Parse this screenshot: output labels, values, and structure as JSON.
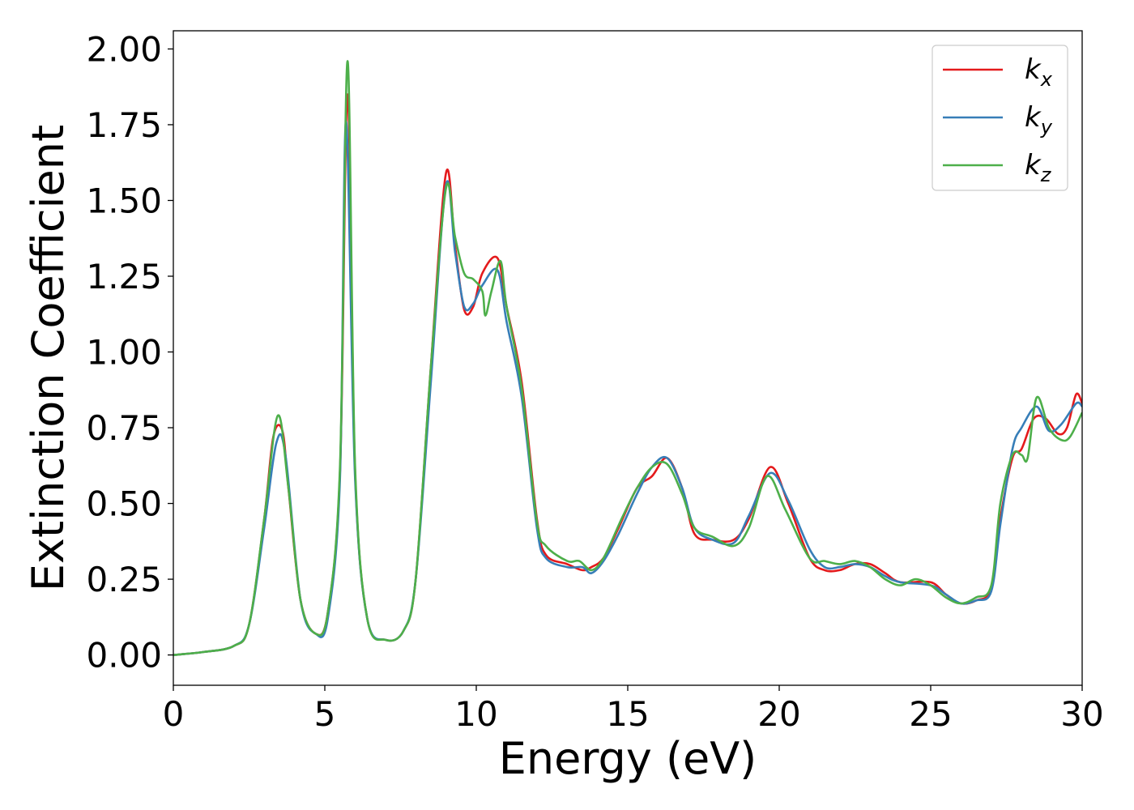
{
  "chart_data": {
    "type": "line",
    "title": "",
    "xlabel": "Energy (eV)",
    "ylabel": "Extinction Coefficient",
    "xlim": [
      0,
      30
    ],
    "ylim": [
      -0.1,
      2.06
    ],
    "xticks": [
      0,
      5,
      10,
      15,
      20,
      25,
      30
    ],
    "xtick_labels": [
      "0",
      "5",
      "10",
      "15",
      "20",
      "25",
      "30"
    ],
    "yticks": [
      0.0,
      0.25,
      0.5,
      0.75,
      1.0,
      1.25,
      1.5,
      1.75,
      2.0
    ],
    "ytick_labels": [
      "0.00",
      "0.25",
      "0.50",
      "0.75",
      "1.00",
      "1.25",
      "1.50",
      "1.75",
      "2.00"
    ],
    "grid": false,
    "legend_position": "top-right",
    "series": [
      {
        "name": "k",
        "sub": "x",
        "color": "#e41a1c",
        "x": [
          0,
          1,
          2,
          2.5,
          3,
          3.3,
          3.6,
          3.8,
          4.2,
          4.7,
          5.1,
          5.5,
          5.75,
          6.0,
          6.4,
          7.0,
          7.6,
          8.0,
          8.5,
          9.0,
          9.3,
          9.6,
          9.9,
          10.2,
          10.7,
          11.0,
          11.5,
          12.0,
          12.3,
          13.0,
          13.5,
          13.8,
          14.2,
          14.7,
          15.3,
          15.8,
          16.3,
          16.8,
          17.2,
          17.8,
          18.5,
          19.0,
          19.7,
          20.3,
          21.0,
          21.5,
          22.0,
          22.5,
          23.0,
          23.5,
          24.0,
          25.0,
          25.5,
          26.0,
          26.5,
          27.0,
          27.3,
          27.7,
          28.0,
          28.4,
          28.8,
          29.2,
          29.5,
          29.8,
          30.0
        ],
        "y": [
          0.0,
          0.01,
          0.03,
          0.1,
          0.45,
          0.72,
          0.74,
          0.55,
          0.18,
          0.07,
          0.14,
          0.6,
          1.85,
          0.6,
          0.12,
          0.05,
          0.08,
          0.25,
          0.95,
          1.59,
          1.35,
          1.14,
          1.15,
          1.26,
          1.31,
          1.15,
          0.9,
          0.45,
          0.33,
          0.3,
          0.28,
          0.29,
          0.32,
          0.42,
          0.55,
          0.59,
          0.65,
          0.55,
          0.4,
          0.38,
          0.38,
          0.45,
          0.62,
          0.5,
          0.32,
          0.28,
          0.28,
          0.3,
          0.3,
          0.27,
          0.24,
          0.24,
          0.2,
          0.17,
          0.18,
          0.22,
          0.45,
          0.65,
          0.68,
          0.78,
          0.78,
          0.73,
          0.75,
          0.86,
          0.83
        ]
      },
      {
        "name": "k",
        "sub": "y",
        "color": "#377eb8",
        "x": [
          0,
          1,
          2,
          2.5,
          3,
          3.4,
          3.7,
          4.2,
          4.7,
          5.1,
          5.5,
          5.7,
          6.0,
          6.4,
          7.0,
          7.6,
          8.0,
          8.5,
          9.0,
          9.3,
          9.6,
          9.9,
          10.2,
          10.7,
          11.0,
          11.5,
          12.0,
          12.3,
          13.0,
          13.5,
          13.8,
          14.2,
          14.7,
          15.3,
          15.8,
          16.3,
          16.8,
          17.2,
          17.8,
          18.5,
          19.0,
          19.7,
          20.3,
          21.0,
          21.5,
          22.0,
          22.5,
          23.0,
          23.5,
          24.0,
          25.0,
          25.5,
          26.0,
          26.5,
          27.0,
          27.3,
          27.7,
          28.0,
          28.5,
          28.9,
          29.3,
          29.8,
          30.0
        ],
        "y": [
          0.0,
          0.01,
          0.03,
          0.1,
          0.42,
          0.7,
          0.66,
          0.18,
          0.07,
          0.12,
          0.58,
          1.76,
          0.58,
          0.12,
          0.05,
          0.08,
          0.25,
          0.9,
          1.55,
          1.33,
          1.15,
          1.16,
          1.22,
          1.27,
          1.1,
          0.85,
          0.42,
          0.32,
          0.29,
          0.29,
          0.27,
          0.31,
          0.4,
          0.53,
          0.62,
          0.65,
          0.55,
          0.42,
          0.38,
          0.37,
          0.46,
          0.6,
          0.51,
          0.35,
          0.29,
          0.29,
          0.3,
          0.29,
          0.26,
          0.24,
          0.23,
          0.2,
          0.17,
          0.18,
          0.21,
          0.43,
          0.68,
          0.75,
          0.82,
          0.74,
          0.76,
          0.83,
          0.82
        ]
      },
      {
        "name": "k",
        "sub": "z",
        "color": "#4daf4a",
        "x": [
          0,
          1,
          2,
          2.5,
          3,
          3.45,
          3.8,
          4.2,
          4.7,
          5.1,
          5.5,
          5.75,
          6.0,
          6.4,
          7.0,
          7.6,
          8.0,
          8.5,
          9.0,
          9.3,
          9.6,
          9.9,
          10.2,
          10.3,
          10.5,
          10.8,
          11.0,
          11.5,
          12.0,
          12.3,
          13.0,
          13.4,
          13.8,
          14.2,
          14.8,
          15.3,
          15.8,
          16.3,
          16.8,
          17.2,
          17.8,
          18.5,
          19.0,
          19.6,
          20.2,
          21.0,
          21.5,
          22.0,
          22.5,
          23.0,
          23.5,
          24.0,
          24.5,
          25.0,
          25.5,
          26.0,
          26.5,
          27.0,
          27.3,
          27.7,
          28.0,
          28.2,
          28.5,
          28.9,
          29.3,
          29.6,
          30.0
        ],
        "y": [
          0.0,
          0.01,
          0.03,
          0.1,
          0.45,
          0.79,
          0.55,
          0.18,
          0.07,
          0.14,
          0.62,
          1.96,
          0.62,
          0.12,
          0.05,
          0.08,
          0.25,
          0.95,
          1.54,
          1.38,
          1.26,
          1.24,
          1.2,
          1.12,
          1.2,
          1.3,
          1.15,
          0.88,
          0.44,
          0.36,
          0.31,
          0.31,
          0.28,
          0.32,
          0.45,
          0.55,
          0.62,
          0.63,
          0.53,
          0.42,
          0.39,
          0.36,
          0.42,
          0.59,
          0.48,
          0.32,
          0.31,
          0.3,
          0.31,
          0.29,
          0.25,
          0.23,
          0.25,
          0.23,
          0.19,
          0.17,
          0.19,
          0.23,
          0.5,
          0.66,
          0.66,
          0.65,
          0.85,
          0.75,
          0.71,
          0.72,
          0.8
        ]
      }
    ]
  }
}
